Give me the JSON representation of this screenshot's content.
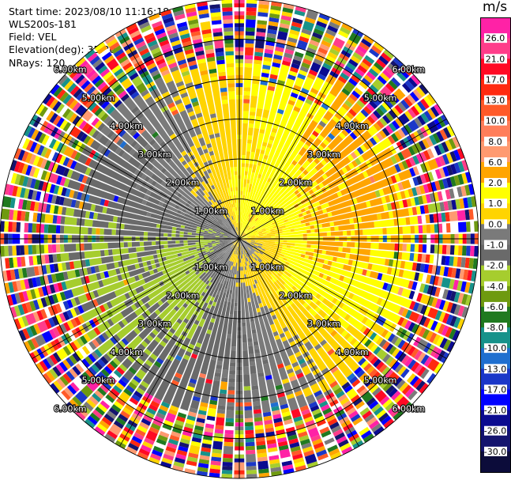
{
  "header": {
    "start_time": "Start time: 2023/08/10 11:16:18",
    "instrument": "WLS200s-181",
    "field": "Field: VEL",
    "elevation": "Elevation(deg): 35.30",
    "nrays": "NRays: 120"
  },
  "chart_data": {
    "type": "heatmap",
    "projection": "polar-ppi",
    "field": "VEL",
    "unit": "m/s",
    "n_rays": 120,
    "elevation_deg": 35.3,
    "max_range_km": 6.0,
    "range_ring_labels": [
      "1.00km",
      "2.00km",
      "3.00km",
      "4.00km",
      "5.00km",
      "6.00km"
    ],
    "range_ring_km": [
      1,
      2,
      3,
      4,
      5,
      6
    ],
    "clean_signal_max_km": 4.5,
    "velocity_pattern": {
      "description_free": true,
      "positive_direction_deg_from_north": 65,
      "amplitude_ms": 2.2
    },
    "colorbar": {
      "title": "m/s",
      "tick_labels": [
        "26.0",
        "21.0",
        "17.0",
        "13.0",
        "10.0",
        "8.0",
        "6.0",
        "2.0",
        "1.0",
        "0.0",
        "-1.0",
        "-2.0",
        "-4.0",
        "-6.0",
        "-8.0",
        "-10.0",
        "-13.0",
        "-17.0",
        "-21.0",
        "-26.0",
        "-30.0"
      ],
      "levels": [
        30,
        26,
        21,
        17,
        13,
        10,
        8,
        6,
        2,
        1,
        0,
        -1,
        -2,
        -4,
        -6,
        -8,
        -10,
        -13,
        -17,
        -21,
        -26,
        -30
      ],
      "colors": [
        "#ff22a6",
        "#ff3d8a",
        "#ff0a24",
        "#ff2a10",
        "#ff5a28",
        "#ff7e5a",
        "#ff9a70",
        "#ffa500",
        "#ffff00",
        "#ffd400",
        "#7a7a7a",
        "#6a6a6a",
        "#a6cd2e",
        "#6e9a10",
        "#207a20",
        "#17928a",
        "#1f6fcf",
        "#1a37c8",
        "#0000ff",
        "#0b0b90",
        "#14146e",
        "#0c0c3a"
      ]
    }
  }
}
